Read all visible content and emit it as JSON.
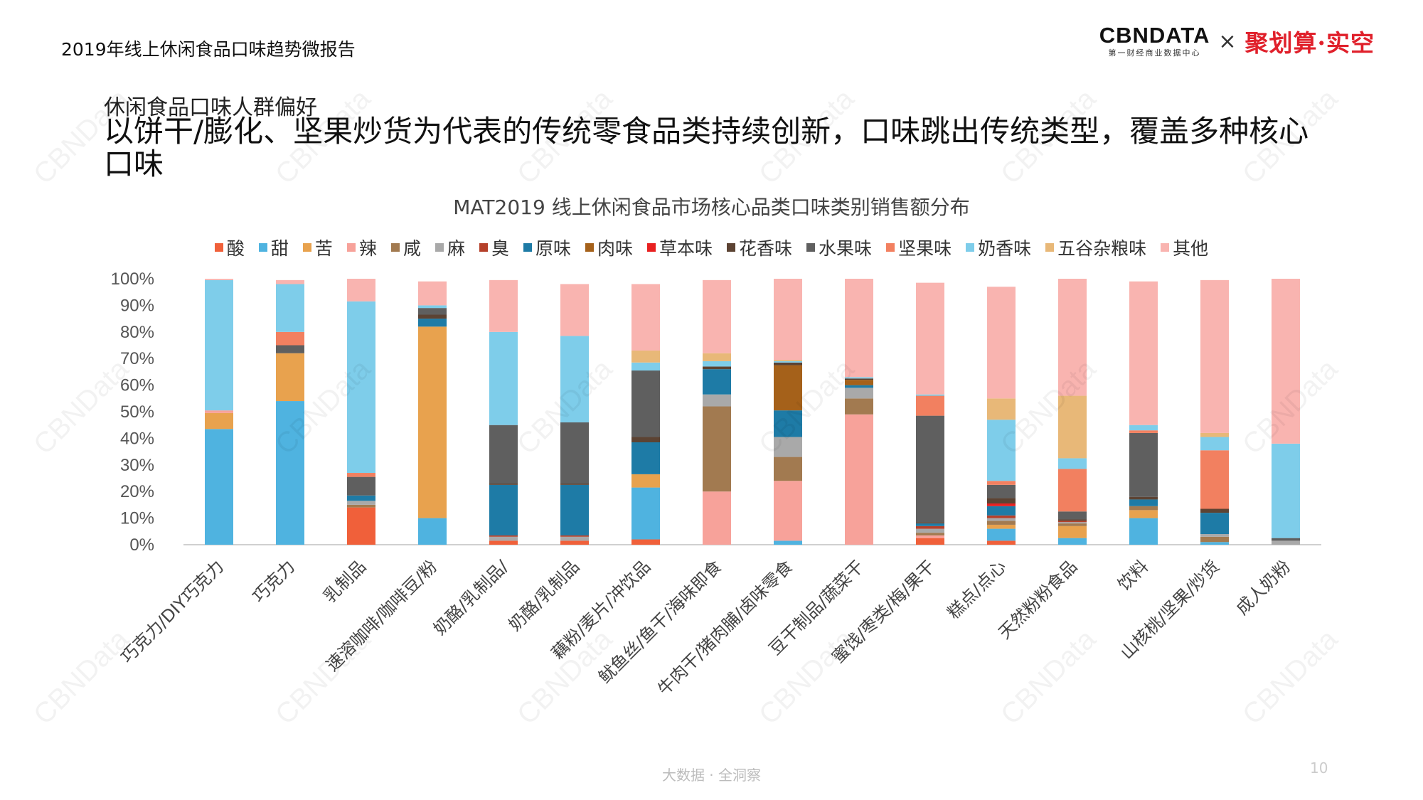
{
  "header": {
    "report_title": "2019年线上休闲食品口味趋势微报告"
  },
  "logos": {
    "cbn_main": "CBNDATA",
    "cbn_sub": "第一财经商业数据中心",
    "times": "×",
    "partner": "聚划算·实空"
  },
  "section": "休闲食品口味人群偏好",
  "headline": "以饼干/膨化、坚果炒货为代表的传统零食品类持续创新，口味跳出传统类型，覆盖多种核心口味",
  "watermark": "CBNData",
  "footer": {
    "slogan": "大数据 · 全洞察",
    "page_number": "10"
  },
  "chart_data": {
    "type": "bar",
    "stacked": true,
    "title": "MAT2019 线上休闲食品市场核心品类口味类别销售额分布",
    "xlabel": "",
    "ylabel": "",
    "ylim": [
      0,
      100
    ],
    "yticks": [
      "0%",
      "10%",
      "20%",
      "30%",
      "40%",
      "50%",
      "60%",
      "70%",
      "80%",
      "90%",
      "100%"
    ],
    "grid": false,
    "legend_position": "top",
    "categories": [
      "巧克力/DIY巧克力",
      "巧克力",
      "乳制品",
      "速溶咖啡/咖啡豆/粉",
      "奶酪/乳制品/",
      "奶酪/乳制品",
      "藕粉/麦片/冲饮品",
      "鱿鱼丝/鱼干/海味即食",
      "牛肉干/猪肉脯/卤味零食",
      "豆干制品/蔬菜干",
      "蜜饯/枣类/梅/果干",
      "糕点/点心",
      "天然粉粉食品",
      "饮料",
      "山核桃/坚果/炒货",
      "成人奶粉"
    ],
    "series": [
      {
        "name": "酸",
        "color": "#F0603A",
        "values": [
          0,
          0,
          14,
          0,
          1.5,
          1.5,
          2,
          0,
          0,
          0,
          2.5,
          1.5,
          0,
          0,
          0,
          0
        ]
      },
      {
        "name": "甜",
        "color": "#4FB3E0",
        "values": [
          43.5,
          54,
          0,
          10,
          0,
          0,
          19.5,
          0,
          1.5,
          0,
          0,
          4.5,
          2.5,
          10,
          1,
          0
        ]
      },
      {
        "name": "苦",
        "color": "#E8A24E",
        "values": [
          6,
          18,
          0,
          72,
          0,
          0,
          5,
          0,
          0,
          0,
          0,
          1.5,
          4.5,
          3,
          0,
          0
        ]
      },
      {
        "name": "辣",
        "color": "#F7A29A",
        "values": [
          1,
          0,
          0,
          0,
          0,
          0,
          0,
          20,
          22.5,
          49,
          1,
          0,
          0,
          0,
          0,
          0
        ]
      },
      {
        "name": "咸",
        "color": "#A27A50",
        "values": [
          0,
          0,
          1,
          0,
          0,
          0,
          0,
          32,
          9,
          6,
          1,
          1.5,
          1,
          1.5,
          2,
          0
        ]
      },
      {
        "name": "麻",
        "color": "#A9A9A9",
        "values": [
          0,
          0,
          1.5,
          0,
          1.5,
          1.5,
          0,
          4.5,
          7.5,
          4,
          1.5,
          1,
          0.5,
          0,
          1,
          1.5
        ]
      },
      {
        "name": "臭",
        "color": "#B5402A",
        "values": [
          0,
          0,
          0,
          0,
          0.5,
          0.5,
          0,
          0,
          0,
          0,
          1,
          1,
          0.5,
          0,
          0,
          0
        ]
      },
      {
        "name": "原味",
        "color": "#1E7BA6",
        "values": [
          0,
          0,
          2,
          3,
          19,
          19,
          12,
          9.5,
          10,
          1,
          1,
          3.5,
          0,
          2.5,
          8,
          0
        ]
      },
      {
        "name": "肉味",
        "color": "#A5611A",
        "values": [
          0,
          0,
          0,
          0,
          0,
          0,
          0,
          0,
          17,
          2,
          0,
          0,
          0,
          0,
          0,
          0
        ]
      },
      {
        "name": "草本味",
        "color": "#E82020",
        "values": [
          0,
          0,
          0,
          0,
          0,
          0,
          0,
          0,
          0,
          0,
          0,
          1,
          0,
          0,
          0,
          0
        ]
      },
      {
        "name": "花香味",
        "color": "#5C4333",
        "values": [
          0,
          0,
          0,
          1.5,
          0.5,
          0.5,
          2,
          1,
          1,
          0.5,
          0.5,
          2,
          0.5,
          1,
          1.5,
          0
        ]
      },
      {
        "name": "水果味",
        "color": "#5F5F5F",
        "values": [
          0,
          3,
          7,
          2.5,
          22,
          23,
          25,
          0,
          0,
          0,
          40,
          5,
          3,
          24,
          0,
          1
        ]
      },
      {
        "name": "坚果味",
        "color": "#F28060",
        "values": [
          0,
          5,
          1.5,
          0,
          0,
          0,
          0,
          0,
          0,
          0,
          7.5,
          1.5,
          16,
          1,
          22,
          0
        ]
      },
      {
        "name": "奶香味",
        "color": "#7ECDEA",
        "values": [
          49,
          18,
          64.5,
          1,
          35,
          32.5,
          3,
          2,
          0.5,
          0.5,
          0.5,
          23,
          4,
          2,
          5,
          35.5
        ]
      },
      {
        "name": "五谷杂粮味",
        "color": "#E8B878",
        "values": [
          0,
          0,
          0,
          0,
          0,
          0,
          4.5,
          3,
          0.5,
          0,
          0,
          8,
          23.5,
          0,
          1.5,
          0
        ]
      },
      {
        "name": "其他",
        "color": "#F9B4B0",
        "values": [
          0.5,
          1.5,
          8.5,
          9,
          19.5,
          19.5,
          25,
          27.5,
          30.5,
          37,
          42,
          42,
          44,
          54,
          57.5,
          62
        ]
      }
    ]
  }
}
